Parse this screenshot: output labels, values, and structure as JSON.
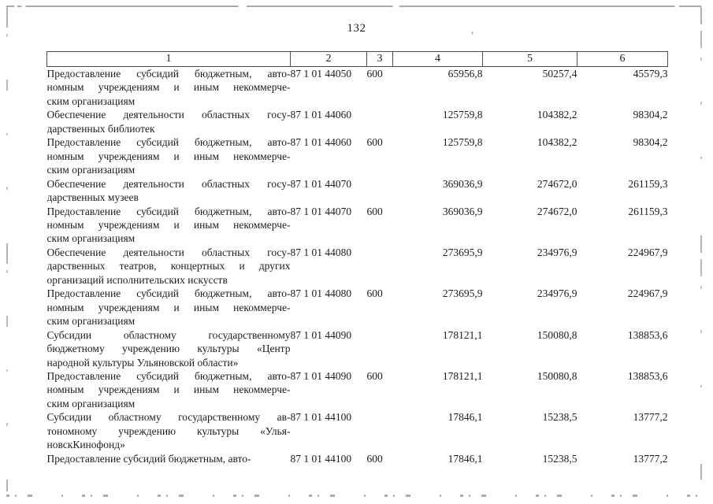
{
  "page": {
    "number": "132"
  },
  "table": {
    "header": [
      "1",
      "2",
      "3",
      "4",
      "5",
      "6"
    ],
    "rows": [
      {
        "name_lines": [
          "Предоставление субсидий бюджетным, авто-",
          "номным учреждениям и иным некоммерче-",
          "ским организациям"
        ],
        "code": "87 1 01 44050",
        "group": "600",
        "col4": "65956,8",
        "col5": "50257,4",
        "col6": "45579,3"
      },
      {
        "name_lines": [
          "Обеспечение деятельности областных госу-",
          "дарственных библиотек"
        ],
        "code": "87 1 01 44060",
        "group": "",
        "col4": "125759,8",
        "col5": "104382,2",
        "col6": "98304,2"
      },
      {
        "name_lines": [
          "Предоставление субсидий бюджетным, авто-",
          "номным учреждениям и иным некоммерче-",
          "ским организациям"
        ],
        "code": "87 1 01 44060",
        "group": "600",
        "col4": "125759,8",
        "col5": "104382,2",
        "col6": "98304,2"
      },
      {
        "name_lines": [
          "Обеспечение деятельности областных госу-",
          "дарственных музеев"
        ],
        "code": "87 1 01 44070",
        "group": "",
        "col4": "369036,9",
        "col5": "274672,0",
        "col6": "261159,3"
      },
      {
        "name_lines": [
          "Предоставление субсидий бюджетным, авто-",
          "номным учреждениям и иным некоммерче-",
          "ским организациям"
        ],
        "code": "87 1 01 44070",
        "group": "600",
        "col4": "369036,9",
        "col5": "274672,0",
        "col6": "261159,3"
      },
      {
        "name_lines": [
          "Обеспечение деятельности областных госу-",
          "дарственных театров, концертных и других",
          "организаций исполнительских искусств"
        ],
        "code": "87 1 01 44080",
        "group": "",
        "col4": "273695,9",
        "col5": "234976,9",
        "col6": "224967,9"
      },
      {
        "name_lines": [
          "Предоставление субсидий бюджетным, авто-",
          "номным учреждениям и иным некоммерче-",
          "ским организациям"
        ],
        "code": "87 1 01 44080",
        "group": "600",
        "col4": "273695,9",
        "col5": "234976,9",
        "col6": "224967,9"
      },
      {
        "name_lines": [
          "Субсидии областному государственному",
          "бюджетному учреждению культуры «Центр",
          "народной культуры Ульяновской области»"
        ],
        "code": "87 1 01 44090",
        "group": "",
        "col4": "178121,1",
        "col5": "150080,8",
        "col6": "138853,6"
      },
      {
        "name_lines": [
          "Предоставление субсидий бюджетным, авто-",
          "номным учреждениям и иным некоммерче-",
          "ским организациям"
        ],
        "code": "87 1 01 44090",
        "group": "600",
        "col4": "178121,1",
        "col5": "150080,8",
        "col6": "138853,6"
      },
      {
        "name_lines": [
          "Субсидии областному государственному ав-",
          "тономному учреждению культуры «Улья-",
          "новскКинофонд»"
        ],
        "code": "87 1 01 44100",
        "group": "",
        "col4": "17846,1",
        "col5": "15238,5",
        "col6": "13777,2"
      },
      {
        "name_lines": [
          "Предоставление субсидий бюджетным, авто-"
        ],
        "code": "87 1 01 44100",
        "group": "600",
        "col4": "17846,1",
        "col5": "15238,5",
        "col6": "13777,2"
      }
    ]
  }
}
